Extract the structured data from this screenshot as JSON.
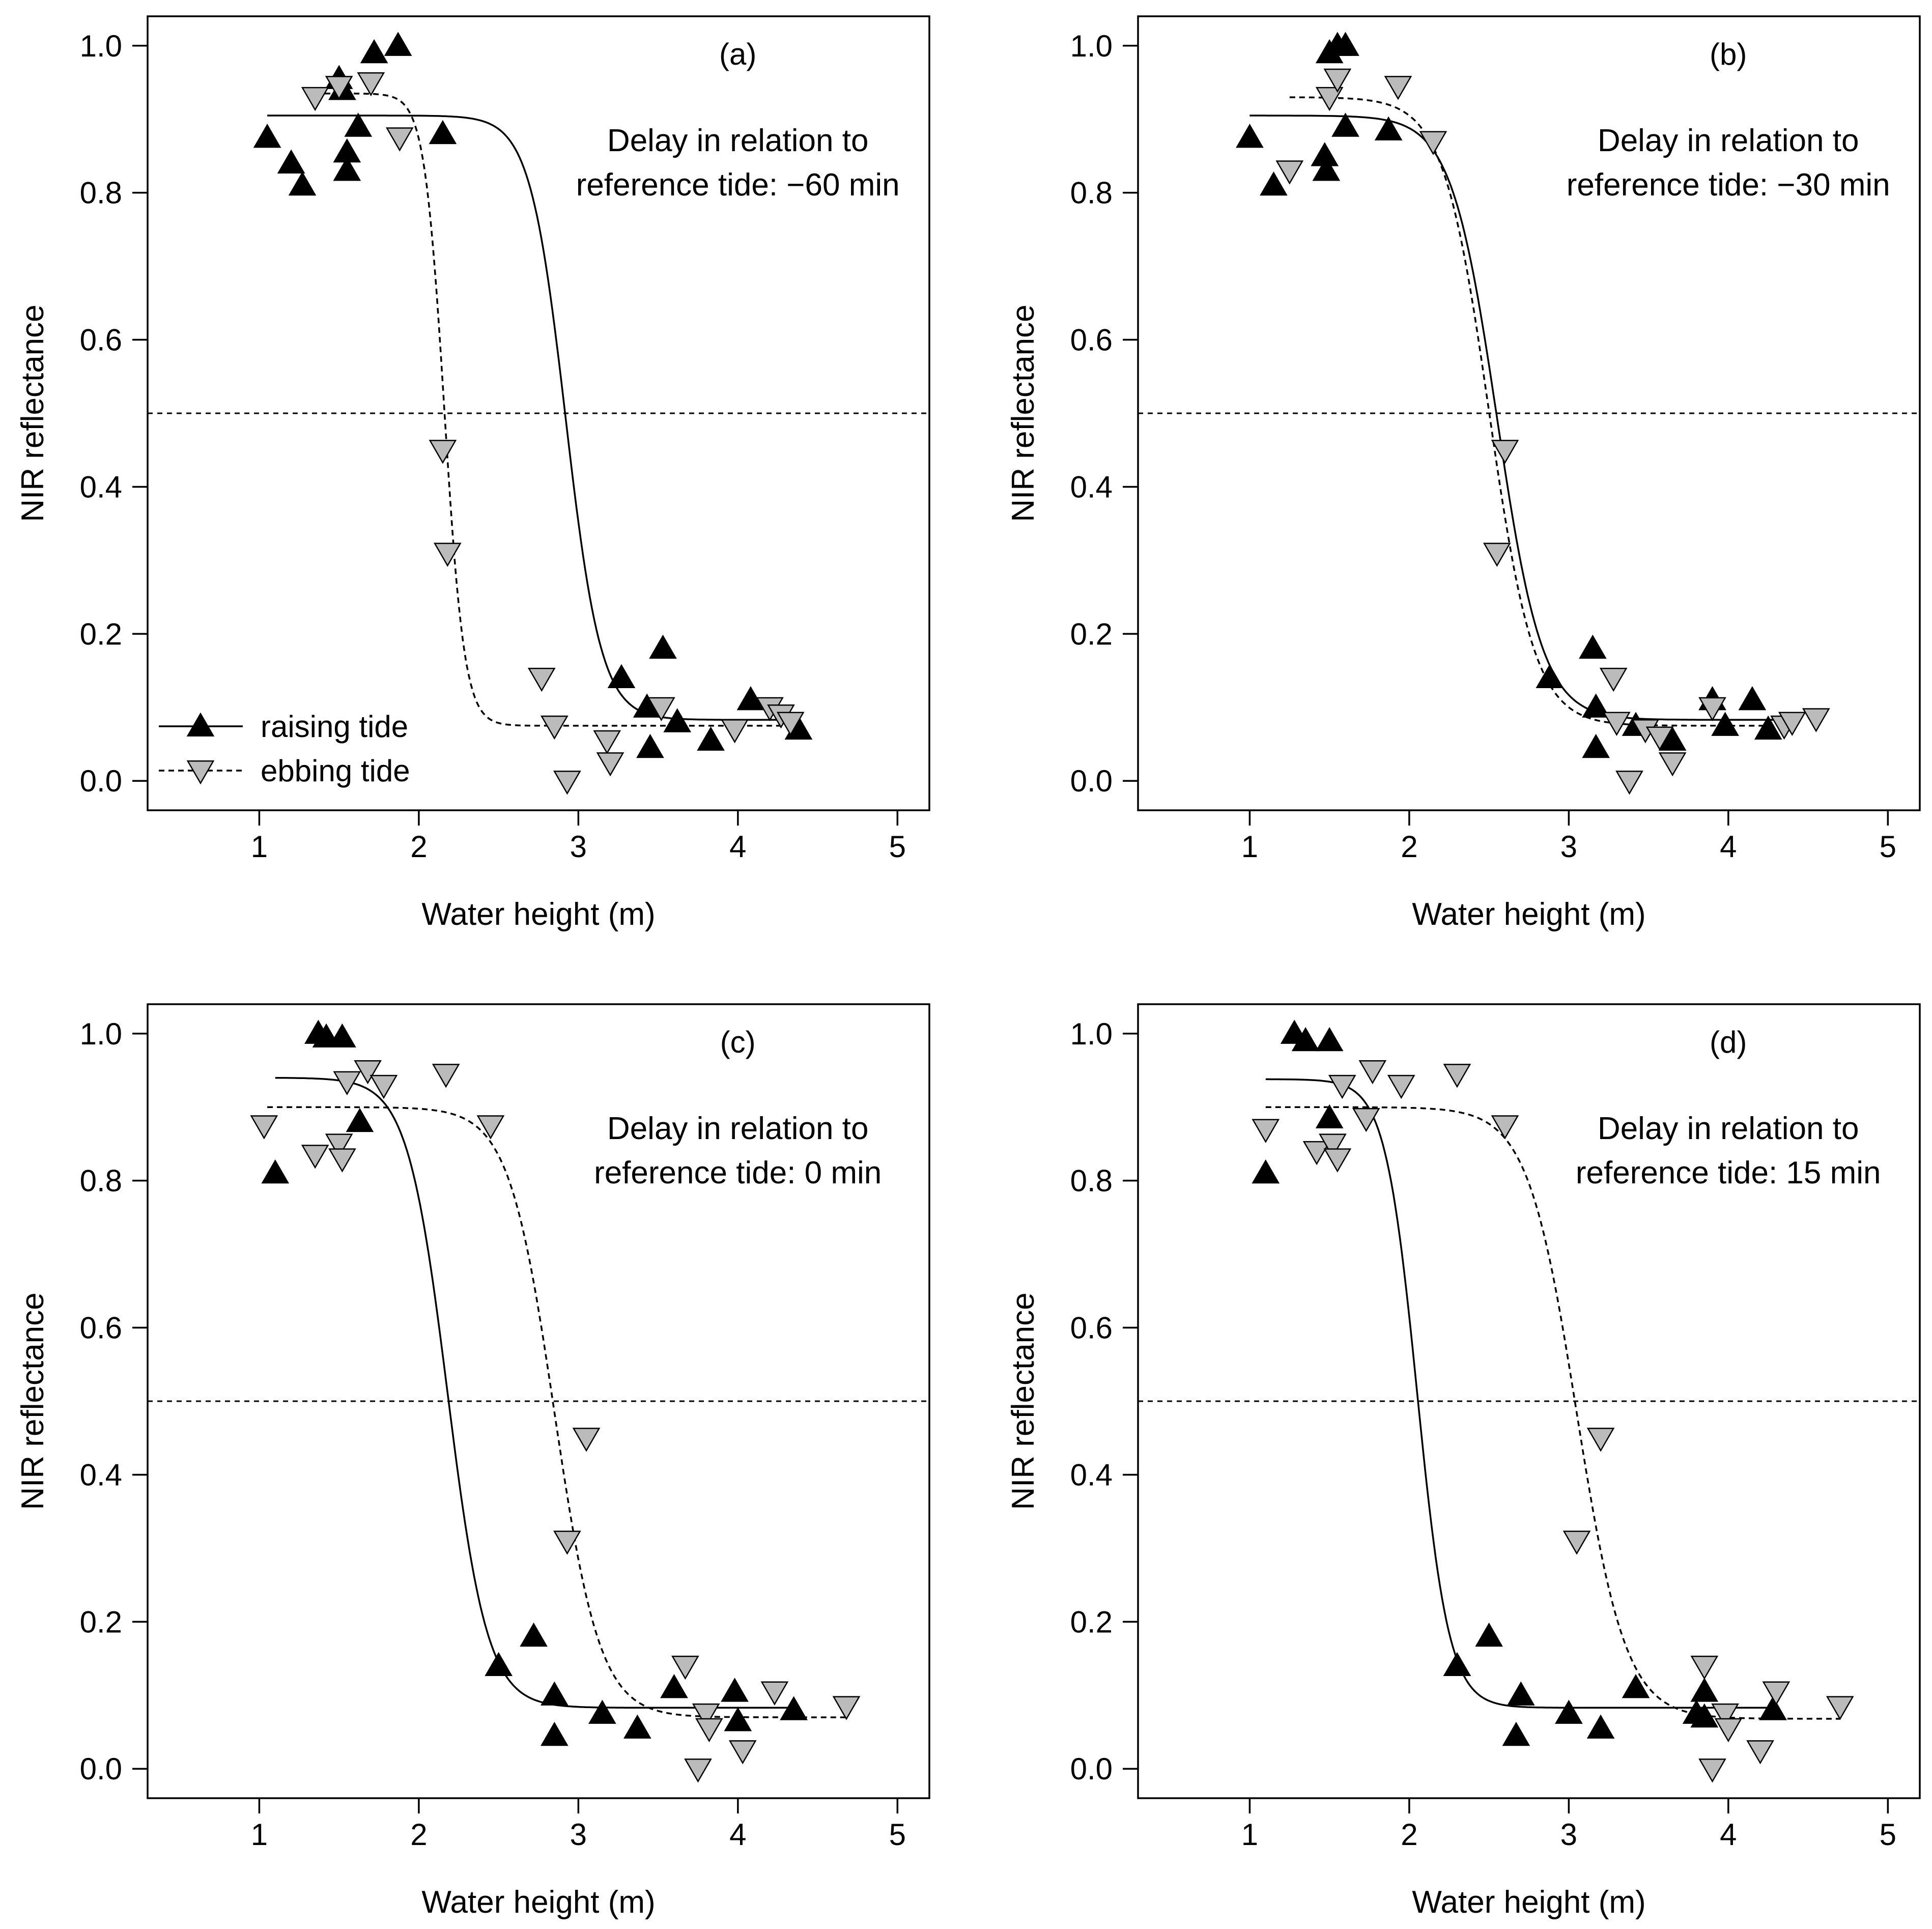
{
  "chart_data": [
    {
      "type": "scatter",
      "panel_label": "(a)",
      "xlabel": "Water height (m)",
      "ylabel": "NIR reflectance",
      "xlim": [
        0.3,
        5.2
      ],
      "ylim": [
        -0.04,
        1.04
      ],
      "xticks": [
        "1",
        "2",
        "3",
        "4",
        "5"
      ],
      "yticks": [
        "0.0",
        "0.2",
        "0.4",
        "0.6",
        "0.8",
        "1.0"
      ],
      "annotation": [
        "Delay in relation to",
        "reference tide:  −60 min"
      ],
      "legend": {
        "position": "bottom-left",
        "entries": [
          "raising tide",
          "ebbing tide"
        ]
      },
      "threshold": 0.5,
      "series": [
        {
          "name": "raising tide",
          "marker": "triangle-up",
          "color": "#000000",
          "line": "solid",
          "fit": {
            "lower": 0.083,
            "upper": 0.905,
            "midpoint": 2.92,
            "slope": 9,
            "xmin": 1.05,
            "xmax": 4.35
          },
          "points": [
            [
              1.05,
              0.875
            ],
            [
              1.2,
              0.84
            ],
            [
              1.27,
              0.81
            ],
            [
              1.5,
              0.955
            ],
            [
              1.52,
              0.94
            ],
            [
              1.55,
              0.855
            ],
            [
              1.55,
              0.83
            ],
            [
              1.62,
              0.89
            ],
            [
              1.72,
              0.99
            ],
            [
              1.87,
              1.0
            ],
            [
              2.15,
              0.88
            ],
            [
              3.27,
              0.14
            ],
            [
              3.43,
              0.1
            ],
            [
              3.45,
              0.045
            ],
            [
              3.53,
              0.18
            ],
            [
              3.62,
              0.08
            ],
            [
              3.83,
              0.055
            ],
            [
              4.08,
              0.11
            ],
            [
              4.38,
              0.07
            ]
          ]
        },
        {
          "name": "ebbing tide",
          "marker": "triangle-down",
          "color": "#bbbbbb",
          "line": "dashed",
          "fit": {
            "lower": 0.075,
            "upper": 0.935,
            "midpoint": 2.16,
            "slope": 16,
            "xmin": 1.35,
            "xmax": 4.35
          },
          "points": [
            [
              1.35,
              0.93
            ],
            [
              1.5,
              0.945
            ],
            [
              1.7,
              0.95
            ],
            [
              1.88,
              0.875
            ],
            [
              2.15,
              0.45
            ],
            [
              2.18,
              0.31
            ],
            [
              2.77,
              0.14
            ],
            [
              2.85,
              0.075
            ],
            [
              2.93,
              0.0
            ],
            [
              3.18,
              0.055
            ],
            [
              3.2,
              0.025
            ],
            [
              3.52,
              0.1
            ],
            [
              3.98,
              0.07
            ],
            [
              4.2,
              0.1
            ],
            [
              4.27,
              0.09
            ],
            [
              4.33,
              0.08
            ]
          ]
        }
      ]
    },
    {
      "type": "scatter",
      "panel_label": "(b)",
      "xlabel": "Water height (m)",
      "ylabel": "NIR reflectance",
      "xlim": [
        0.3,
        5.2
      ],
      "ylim": [
        -0.04,
        1.04
      ],
      "xticks": [
        "1",
        "2",
        "3",
        "4",
        "5"
      ],
      "yticks": [
        "0.0",
        "0.2",
        "0.4",
        "0.6",
        "0.8",
        "1.0"
      ],
      "annotation": [
        "Delay in relation to",
        "reference tide:  −30 min"
      ],
      "threshold": 0.5,
      "series": [
        {
          "name": "raising tide",
          "marker": "triangle-up",
          "color": "#000000",
          "line": "solid",
          "fit": {
            "lower": 0.083,
            "upper": 0.905,
            "midpoint": 2.55,
            "slope": 7,
            "xmin": 1.0,
            "xmax": 4.4
          },
          "points": [
            [
              1.0,
              0.875
            ],
            [
              1.15,
              0.81
            ],
            [
              1.47,
              0.85
            ],
            [
              1.48,
              0.83
            ],
            [
              1.5,
              0.99
            ],
            [
              1.55,
              1.0
            ],
            [
              1.6,
              1.0
            ],
            [
              1.6,
              0.89
            ],
            [
              1.87,
              0.885
            ],
            [
              2.88,
              0.14
            ],
            [
              3.15,
              0.18
            ],
            [
              3.17,
              0.1
            ],
            [
              3.17,
              0.045
            ],
            [
              3.42,
              0.075
            ],
            [
              3.65,
              0.055
            ],
            [
              3.9,
              0.11
            ],
            [
              3.98,
              0.075
            ],
            [
              4.15,
              0.11
            ],
            [
              4.25,
              0.07
            ]
          ]
        },
        {
          "name": "ebbing tide",
          "marker": "triangle-down",
          "color": "#bbbbbb",
          "line": "dashed",
          "fit": {
            "lower": 0.075,
            "upper": 0.93,
            "midpoint": 2.5,
            "slope": 7,
            "xmin": 1.25,
            "xmax": 4.4
          },
          "points": [
            [
              1.25,
              0.83
            ],
            [
              1.5,
              0.93
            ],
            [
              1.55,
              0.955
            ],
            [
              1.93,
              0.945
            ],
            [
              2.15,
              0.87
            ],
            [
              2.6,
              0.45
            ],
            [
              2.55,
              0.31
            ],
            [
              3.28,
              0.14
            ],
            [
              3.3,
              0.08
            ],
            [
              3.38,
              0.0
            ],
            [
              3.48,
              0.07
            ],
            [
              3.57,
              0.06
            ],
            [
              3.65,
              0.025
            ],
            [
              3.9,
              0.1
            ],
            [
              4.35,
              0.075
            ],
            [
              4.4,
              0.08
            ],
            [
              4.55,
              0.085
            ]
          ]
        }
      ]
    },
    {
      "type": "scatter",
      "panel_label": "(c)",
      "xlabel": "Water height (m)",
      "ylabel": "NIR reflectance",
      "xlim": [
        0.3,
        5.2
      ],
      "ylim": [
        -0.04,
        1.04
      ],
      "xticks": [
        "1",
        "2",
        "3",
        "4",
        "5"
      ],
      "yticks": [
        "0.0",
        "0.2",
        "0.4",
        "0.6",
        "0.8",
        "1.0"
      ],
      "annotation": [
        "Delay in relation to",
        "reference tide:  0 min"
      ],
      "threshold": 0.5,
      "series": [
        {
          "name": "raising tide",
          "marker": "triangle-up",
          "color": "#000000",
          "line": "solid",
          "fit": {
            "lower": 0.083,
            "upper": 0.94,
            "midpoint": 2.18,
            "slope": 8,
            "xmin": 1.1,
            "xmax": 4.35
          },
          "points": [
            [
              1.1,
              0.81
            ],
            [
              1.37,
              1.0
            ],
            [
              1.42,
              0.995
            ],
            [
              1.52,
              0.995
            ],
            [
              1.63,
              0.88
            ],
            [
              2.5,
              0.14
            ],
            [
              2.72,
              0.18
            ],
            [
              2.85,
              0.1
            ],
            [
              2.85,
              0.045
            ],
            [
              3.15,
              0.075
            ],
            [
              3.37,
              0.055
            ],
            [
              3.6,
              0.11
            ],
            [
              3.98,
              0.105
            ],
            [
              4.0,
              0.065
            ],
            [
              4.35,
              0.08
            ]
          ]
        },
        {
          "name": "ebbing tide",
          "marker": "triangle-down",
          "color": "#bbbbbb",
          "line": "dashed",
          "fit": {
            "lower": 0.07,
            "upper": 0.9,
            "midpoint": 2.85,
            "slope": 7,
            "xmin": 1.05,
            "xmax": 4.7
          },
          "points": [
            [
              1.03,
              0.875
            ],
            [
              1.35,
              0.835
            ],
            [
              1.5,
              0.85
            ],
            [
              1.52,
              0.83
            ],
            [
              1.55,
              0.935
            ],
            [
              1.68,
              0.95
            ],
            [
              1.78,
              0.93
            ],
            [
              2.17,
              0.945
            ],
            [
              2.45,
              0.875
            ],
            [
              2.93,
              0.31
            ],
            [
              3.05,
              0.45
            ],
            [
              3.67,
              0.14
            ],
            [
              3.75,
              0.0
            ],
            [
              3.8,
              0.075
            ],
            [
              3.82,
              0.055
            ],
            [
              4.03,
              0.025
            ],
            [
              4.23,
              0.105
            ],
            [
              4.68,
              0.085
            ]
          ]
        }
      ]
    },
    {
      "type": "scatter",
      "panel_label": "(d)",
      "xlabel": "Water height (m)",
      "ylabel": "NIR reflectance",
      "xlim": [
        0.3,
        5.2
      ],
      "ylim": [
        -0.04,
        1.04
      ],
      "xticks": [
        "1",
        "2",
        "3",
        "4",
        "5"
      ],
      "yticks": [
        "0.0",
        "0.2",
        "0.4",
        "0.6",
        "0.8",
        "1.0"
      ],
      "annotation": [
        "Delay in relation to",
        "reference tide:  15 min"
      ],
      "threshold": 0.5,
      "series": [
        {
          "name": "raising tide",
          "marker": "triangle-up",
          "color": "#000000",
          "line": "solid",
          "fit": {
            "lower": 0.083,
            "upper": 0.938,
            "midpoint": 2.05,
            "slope": 10,
            "xmin": 1.1,
            "xmax": 4.3
          },
          "points": [
            [
              1.1,
              0.81
            ],
            [
              1.28,
              1.0
            ],
            [
              1.35,
              0.99
            ],
            [
              1.5,
              0.99
            ],
            [
              1.5,
              0.885
            ],
            [
              2.3,
              0.14
            ],
            [
              2.5,
              0.18
            ],
            [
              2.67,
              0.045
            ],
            [
              2.7,
              0.1
            ],
            [
              3.0,
              0.075
            ],
            [
              3.2,
              0.055
            ],
            [
              3.42,
              0.11
            ],
            [
              3.8,
              0.075
            ],
            [
              3.85,
              0.07
            ],
            [
              3.85,
              0.105
            ],
            [
              4.28,
              0.08
            ]
          ]
        },
        {
          "name": "ebbing tide",
          "marker": "triangle-down",
          "color": "#bbbbbb",
          "line": "dashed",
          "fit": {
            "lower": 0.068,
            "upper": 0.9,
            "midpoint": 3.05,
            "slope": 6.5,
            "xmin": 1.1,
            "xmax": 4.7
          },
          "points": [
            [
              1.1,
              0.87
            ],
            [
              1.42,
              0.84
            ],
            [
              1.52,
              0.85
            ],
            [
              1.55,
              0.83
            ],
            [
              1.58,
              0.93
            ],
            [
              1.73,
              0.885
            ],
            [
              1.77,
              0.95
            ],
            [
              1.95,
              0.93
            ],
            [
              2.3,
              0.945
            ],
            [
              2.6,
              0.875
            ],
            [
              3.05,
              0.31
            ],
            [
              3.2,
              0.45
            ],
            [
              3.85,
              0.14
            ],
            [
              3.9,
              0.0
            ],
            [
              3.98,
              0.075
            ],
            [
              4.0,
              0.055
            ],
            [
              4.2,
              0.025
            ],
            [
              4.3,
              0.105
            ],
            [
              4.7,
              0.085
            ]
          ]
        }
      ]
    }
  ]
}
